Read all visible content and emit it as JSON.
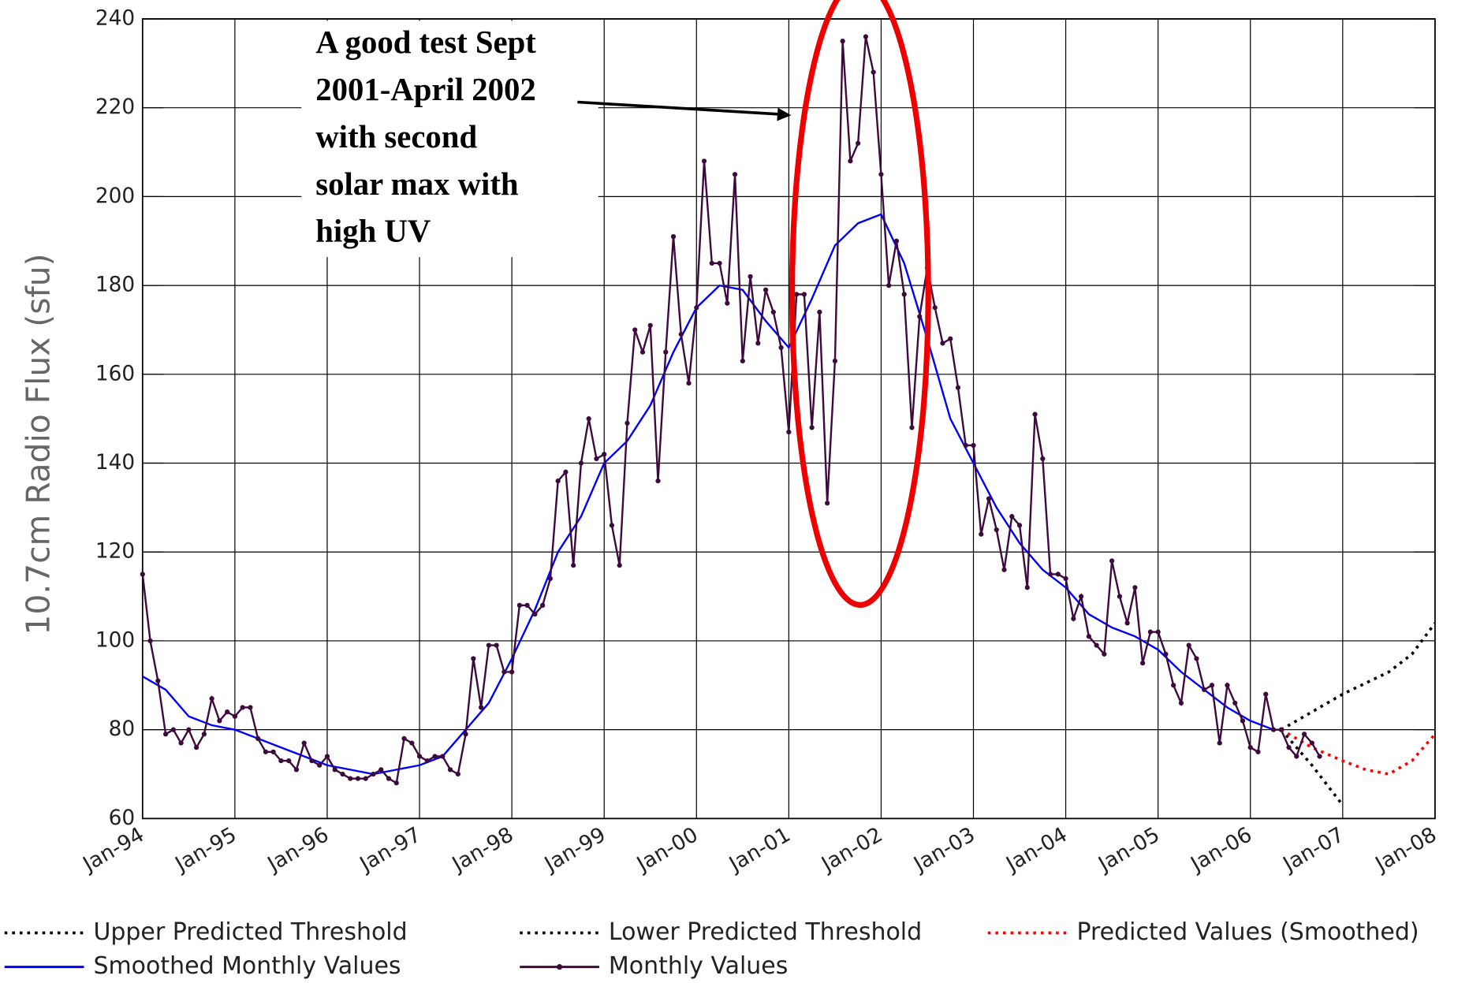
{
  "chart_data": {
    "type": "line",
    "ylabel": "10.7cm Radio Flux (sfu)",
    "annotation": [
      "A good test Sept",
      "2001-April 2002",
      "with second",
      "solar max with",
      "high UV"
    ],
    "xlim": [
      "1994-01",
      "2008-01"
    ],
    "ylim": [
      60,
      240
    ],
    "yticks": [
      60,
      80,
      100,
      120,
      140,
      160,
      180,
      200,
      220,
      240
    ],
    "xticks": [
      {
        "value": "1994-01",
        "label": "Jan-94"
      },
      {
        "value": "1995-01",
        "label": "Jan-95"
      },
      {
        "value": "1996-01",
        "label": "Jan-96"
      },
      {
        "value": "1997-01",
        "label": "Jan-97"
      },
      {
        "value": "1998-01",
        "label": "Jan-98"
      },
      {
        "value": "1999-01",
        "label": "Jan-99"
      },
      {
        "value": "2000-01",
        "label": "Jan-00"
      },
      {
        "value": "2001-01",
        "label": "Jan-01"
      },
      {
        "value": "2002-01",
        "label": "Jan-02"
      },
      {
        "value": "2003-01",
        "label": "Jan-03"
      },
      {
        "value": "2004-01",
        "label": "Jan-04"
      },
      {
        "value": "2005-01",
        "label": "Jan-05"
      },
      {
        "value": "2006-01",
        "label": "Jan-06"
      },
      {
        "value": "2007-01",
        "label": "Jan-07"
      },
      {
        "value": "2008-01",
        "label": "Jan-08"
      }
    ],
    "grid": true,
    "series": [
      {
        "name": "Upper Predicted Threshold",
        "color": "#000000",
        "dash": "dotted",
        "x": [
          "2006-05",
          "2006-09",
          "2007-01",
          "2007-07",
          "2007-10",
          "2008-01"
        ],
        "values": [
          80,
          84,
          88,
          93,
          97,
          104
        ]
      },
      {
        "name": "Lower Predicted Threshold",
        "color": "#000000",
        "dash": "dotted",
        "x": [
          "2006-05",
          "2006-09",
          "2007-01"
        ],
        "values": [
          80,
          72,
          63
        ]
      },
      {
        "name": "Predicted Values (Smoothed)",
        "color": "#ff0000",
        "dash": "dotted",
        "x": [
          "2006-05",
          "2006-09",
          "2007-01",
          "2007-04",
          "2007-07",
          "2007-10",
          "2008-01"
        ],
        "values": [
          80,
          76,
          73,
          71,
          70,
          73,
          79
        ]
      },
      {
        "name": "Smoothed Monthly Values",
        "color": "#0000ff",
        "x": [
          "1994-01",
          "1994-04",
          "1994-07",
          "1994-10",
          "1995-01",
          "1995-04",
          "1995-07",
          "1995-10",
          "1996-01",
          "1996-04",
          "1996-07",
          "1996-10",
          "1997-01",
          "1997-04",
          "1997-07",
          "1997-10",
          "1998-01",
          "1998-04",
          "1998-07",
          "1998-10",
          "1999-01",
          "1999-04",
          "1999-07",
          "1999-10",
          "2000-01",
          "2000-04",
          "2000-07",
          "2000-10",
          "2001-01",
          "2001-04",
          "2001-07",
          "2001-10",
          "2002-01",
          "2002-04",
          "2002-07",
          "2002-10",
          "2003-01",
          "2003-04",
          "2003-07",
          "2003-10",
          "2004-01",
          "2004-04",
          "2004-07",
          "2004-10",
          "2005-01",
          "2005-04",
          "2005-07",
          "2005-10",
          "2006-01",
          "2006-04"
        ],
        "values": [
          92,
          89,
          83,
          81,
          80,
          78,
          76,
          74,
          72,
          71,
          70,
          71,
          72,
          74,
          80,
          86,
          96,
          107,
          120,
          128,
          140,
          145,
          153,
          165,
          175,
          180,
          179,
          172,
          166,
          177,
          189,
          194,
          196,
          185,
          168,
          150,
          140,
          130,
          122,
          116,
          112,
          106,
          103,
          101,
          98,
          93,
          89,
          85,
          82,
          80
        ]
      },
      {
        "name": "Monthly Values",
        "color": "#3d0a3d",
        "markers": true,
        "x": [
          "1994-01",
          "1994-02",
          "1994-03",
          "1994-04",
          "1994-05",
          "1994-06",
          "1994-07",
          "1994-08",
          "1994-09",
          "1994-10",
          "1994-11",
          "1994-12",
          "1995-01",
          "1995-02",
          "1995-03",
          "1995-04",
          "1995-05",
          "1995-06",
          "1995-07",
          "1995-08",
          "1995-09",
          "1995-10",
          "1995-11",
          "1995-12",
          "1996-01",
          "1996-02",
          "1996-03",
          "1996-04",
          "1996-05",
          "1996-06",
          "1996-07",
          "1996-08",
          "1996-09",
          "1996-10",
          "1996-11",
          "1996-12",
          "1997-01",
          "1997-02",
          "1997-03",
          "1997-04",
          "1997-05",
          "1997-06",
          "1997-07",
          "1997-08",
          "1997-09",
          "1997-10",
          "1997-11",
          "1997-12",
          "1998-01",
          "1998-02",
          "1998-03",
          "1998-04",
          "1998-05",
          "1998-06",
          "1998-07",
          "1998-08",
          "1998-09",
          "1998-10",
          "1998-11",
          "1998-12",
          "1999-01",
          "1999-02",
          "1999-03",
          "1999-04",
          "1999-05",
          "1999-06",
          "1999-07",
          "1999-08",
          "1999-09",
          "1999-10",
          "1999-11",
          "1999-12",
          "2000-01",
          "2000-02",
          "2000-03",
          "2000-04",
          "2000-05",
          "2000-06",
          "2000-07",
          "2000-08",
          "2000-09",
          "2000-10",
          "2000-11",
          "2000-12",
          "2001-01",
          "2001-02",
          "2001-03",
          "2001-04",
          "2001-05",
          "2001-06",
          "2001-07",
          "2001-08",
          "2001-09",
          "2001-10",
          "2001-11",
          "2001-12",
          "2002-01",
          "2002-02",
          "2002-03",
          "2002-04",
          "2002-05",
          "2002-06",
          "2002-07",
          "2002-08",
          "2002-09",
          "2002-10",
          "2002-11",
          "2002-12",
          "2003-01",
          "2003-02",
          "2003-03",
          "2003-04",
          "2003-05",
          "2003-06",
          "2003-07",
          "2003-08",
          "2003-09",
          "2003-10",
          "2003-11",
          "2003-12",
          "2004-01",
          "2004-02",
          "2004-03",
          "2004-04",
          "2004-05",
          "2004-06",
          "2004-07",
          "2004-08",
          "2004-09",
          "2004-10",
          "2004-11",
          "2004-12",
          "2005-01",
          "2005-02",
          "2005-03",
          "2005-04",
          "2005-05",
          "2005-06",
          "2005-07",
          "2005-08",
          "2005-09",
          "2005-10",
          "2005-11",
          "2005-12",
          "2006-01",
          "2006-02",
          "2006-03",
          "2006-04",
          "2006-05",
          "2006-06",
          "2006-07",
          "2006-08",
          "2006-09",
          "2006-10"
        ],
        "values": [
          115,
          100,
          91,
          79,
          80,
          77,
          80,
          76,
          79,
          87,
          82,
          84,
          83,
          85,
          85,
          78,
          75,
          75,
          73,
          73,
          71,
          77,
          73,
          72,
          74,
          71,
          70,
          69,
          69,
          69,
          70,
          71,
          69,
          68,
          78,
          77,
          74,
          73,
          74,
          74,
          71,
          70,
          79,
          96,
          85,
          99,
          99,
          93,
          93,
          108,
          108,
          106,
          108,
          114,
          136,
          138,
          117,
          140,
          150,
          141,
          142,
          126,
          117,
          149,
          170,
          165,
          171,
          136,
          165,
          191,
          169,
          158,
          175,
          208,
          185,
          185,
          176,
          205,
          163,
          182,
          167,
          179,
          174,
          166,
          147,
          178,
          178,
          148,
          174,
          131,
          163,
          235,
          208,
          212,
          236,
          228,
          205,
          180,
          190,
          178,
          148,
          173,
          184,
          175,
          167,
          168,
          157,
          144,
          144,
          124,
          132,
          125,
          116,
          128,
          126,
          112,
          151,
          141,
          115,
          115,
          114,
          105,
          110,
          101,
          99,
          97,
          118,
          110,
          104,
          112,
          95,
          102,
          102,
          97,
          90,
          86,
          99,
          96,
          89,
          90,
          77,
          90,
          86,
          82,
          76,
          75,
          88,
          80,
          80,
          76,
          74,
          79,
          77,
          74
        ]
      }
    ]
  }
}
